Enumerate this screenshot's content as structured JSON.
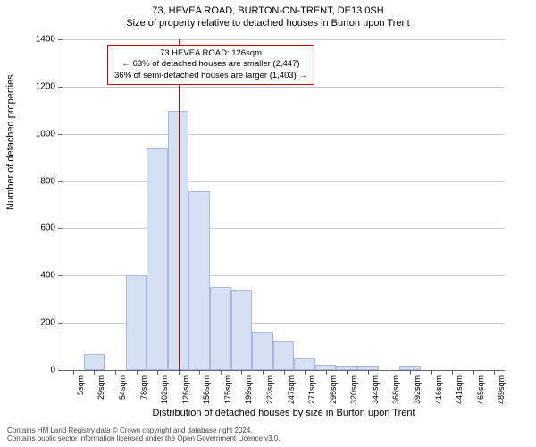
{
  "title_main": "73, HEVEA ROAD, BURTON-ON-TRENT, DE13 0SH",
  "title_sub": "Size of property relative to detached houses in Burton upon Trent",
  "chart": {
    "type": "histogram",
    "ylabel": "Number of detached properties",
    "xlabel": "Distribution of detached houses by size in Burton upon Trent",
    "ylim": [
      0,
      1400
    ],
    "ytick_step": 200,
    "y_ticks": [
      0,
      200,
      400,
      600,
      800,
      1000,
      1200,
      1400
    ],
    "x_categories": [
      "5sqm",
      "29sqm",
      "54sqm",
      "78sqm",
      "102sqm",
      "126sqm",
      "156sqm",
      "175sqm",
      "199sqm",
      "223sqm",
      "247sqm",
      "271sqm",
      "295sqm",
      "320sqm",
      "344sqm",
      "368sqm",
      "392sqm",
      "416sqm",
      "441sqm",
      "465sqm",
      "489sqm"
    ],
    "bar_values": [
      0,
      68,
      0,
      400,
      940,
      1098,
      758,
      352,
      340,
      163,
      125,
      48,
      24,
      20,
      20,
      0,
      18,
      0,
      0,
      0,
      0
    ],
    "bar_fill_color": "#d6e0f5",
    "bar_border_color": "#a8b8e0",
    "grid_color": "#cccccc",
    "background_color": "#ffffff",
    "axis_color": "#666666",
    "marker_color": "#cc0000",
    "marker_x_index": 5,
    "bar_width_ratio": 1.0,
    "title_fontsize": 11,
    "label_fontsize": 11,
    "tick_fontsize": 10
  },
  "annotation": {
    "line1": "73 HEVEA ROAD: 126sqm",
    "line2": "← 63% of detached houses are smaller (2,447)",
    "line3": "36% of semi-detached houses are larger (1,403) →",
    "border_color": "#cc0000",
    "background": "#ffffff",
    "fontsize": 9.5
  },
  "footer": {
    "line1": "Contains HM Land Registry data © Crown copyright and database right 2024.",
    "line2": "Contains public sector information licensed under the Open Government Licence v3.0."
  }
}
